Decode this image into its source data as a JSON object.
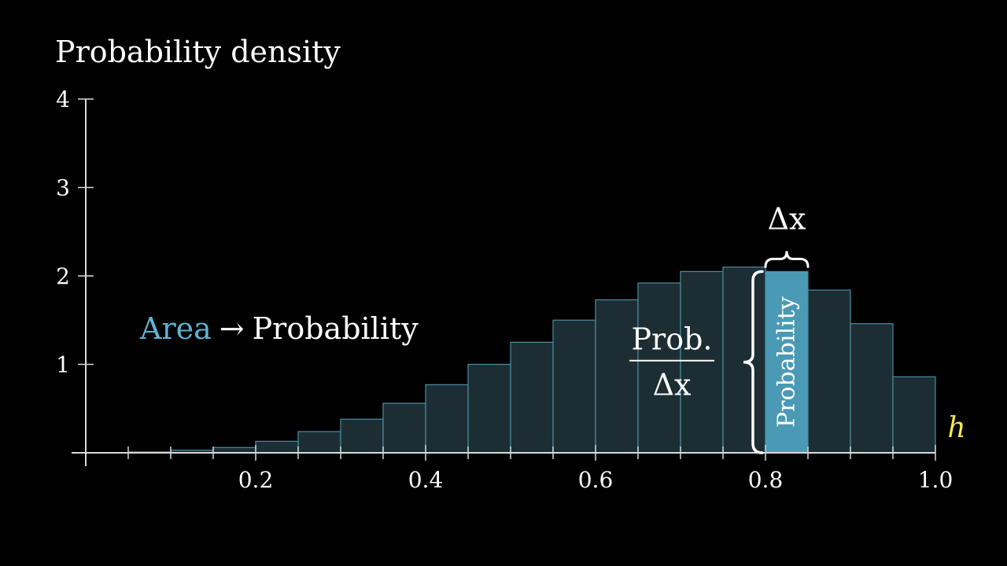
{
  "chart_data": {
    "type": "bar",
    "ylabel": "Probability density",
    "xlabel": "h",
    "xlim": [
      0,
      1.0
    ],
    "ylim": [
      0,
      4
    ],
    "yticks": [
      1,
      2,
      3,
      4
    ],
    "xtick_labels": [
      "0.2",
      "0.4",
      "0.6",
      "0.8",
      "1.0"
    ],
    "bin_width": 0.05,
    "bins_start": [
      0.05,
      0.1,
      0.15,
      0.2,
      0.25,
      0.3,
      0.35,
      0.4,
      0.45,
      0.5,
      0.55,
      0.6,
      0.65,
      0.7,
      0.75,
      0.8,
      0.85,
      0.9,
      0.95
    ],
    "values": [
      0.01,
      0.03,
      0.06,
      0.13,
      0.24,
      0.38,
      0.56,
      0.77,
      1.0,
      1.25,
      1.5,
      1.73,
      1.92,
      2.05,
      2.1,
      2.05,
      1.84,
      1.46,
      0.86
    ],
    "highlight_bin_index": 15,
    "colors": {
      "bar_fill": "#1c2e33",
      "bar_stroke": "#4c8ea3",
      "highlight_fill": "#4a9ab5",
      "axis": "#d8d8d8",
      "text": "#ffffff",
      "accent": "#5fb3d3",
      "xlabel_color": "#f5e94a"
    },
    "annotations": {
      "delta_x": "Δx",
      "highlight_label": "Probability",
      "fraction_numerator": "Prob.",
      "fraction_denominator": "Δx",
      "area_word": "Area",
      "arrow": "→",
      "area_target": "Probability"
    }
  }
}
